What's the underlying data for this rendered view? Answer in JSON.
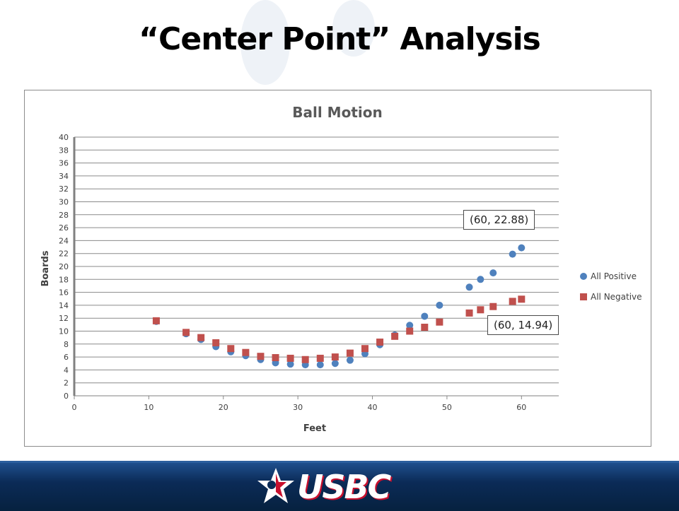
{
  "slide": {
    "title": "“Center Point” Analysis",
    "logo_text": "USBC"
  },
  "colors": {
    "positive": "#4f81bd",
    "negative": "#c0504d",
    "footer": "#0b2b57"
  },
  "callouts": {
    "positive_end": "(60, 22.88)",
    "negative_end": "(60, 14.94)"
  },
  "chart_data": {
    "type": "scatter",
    "title": "Ball Motion",
    "xlabel": "Feet",
    "ylabel": "Boards",
    "xlim": [
      0,
      65
    ],
    "ylim": [
      0,
      40
    ],
    "x_ticks": [
      0,
      10,
      20,
      30,
      40,
      50,
      60
    ],
    "y_ticks": [
      0,
      2,
      4,
      6,
      8,
      10,
      12,
      14,
      16,
      18,
      20,
      22,
      24,
      26,
      28,
      30,
      32,
      34,
      36,
      38,
      40
    ],
    "grid": true,
    "legend_position": "right",
    "series": [
      {
        "name": "All Positive",
        "marker": "circle",
        "color": "#4f81bd",
        "points": [
          [
            11,
            11.5
          ],
          [
            15,
            9.6
          ],
          [
            17,
            8.7
          ],
          [
            19,
            7.6
          ],
          [
            21,
            6.8
          ],
          [
            23,
            6.2
          ],
          [
            25,
            5.6
          ],
          [
            27,
            5.1
          ],
          [
            29,
            4.9
          ],
          [
            31,
            4.8
          ],
          [
            33,
            4.8
          ],
          [
            35,
            5.0
          ],
          [
            37,
            5.5
          ],
          [
            39,
            6.5
          ],
          [
            41,
            7.9
          ],
          [
            43,
            9.4
          ],
          [
            45,
            10.9
          ],
          [
            47,
            12.3
          ],
          [
            49,
            14.0
          ],
          [
            53,
            16.8
          ],
          [
            54.5,
            18.0
          ],
          [
            56.2,
            19.0
          ],
          [
            58.8,
            21.9
          ],
          [
            60,
            22.88
          ]
        ]
      },
      {
        "name": "All Negative",
        "marker": "square",
        "color": "#c0504d",
        "points": [
          [
            11,
            11.6
          ],
          [
            15,
            9.8
          ],
          [
            17,
            9.0
          ],
          [
            19,
            8.2
          ],
          [
            21,
            7.3
          ],
          [
            23,
            6.7
          ],
          [
            25,
            6.1
          ],
          [
            27,
            5.9
          ],
          [
            29,
            5.8
          ],
          [
            31,
            5.6
          ],
          [
            33,
            5.8
          ],
          [
            35,
            6.0
          ],
          [
            37,
            6.6
          ],
          [
            39,
            7.3
          ],
          [
            41,
            8.3
          ],
          [
            43,
            9.2
          ],
          [
            45,
            10.0
          ],
          [
            47,
            10.6
          ],
          [
            49,
            11.4
          ],
          [
            53,
            12.8
          ],
          [
            54.5,
            13.3
          ],
          [
            56.2,
            13.8
          ],
          [
            58.8,
            14.6
          ],
          [
            60,
            14.94
          ]
        ]
      }
    ]
  }
}
